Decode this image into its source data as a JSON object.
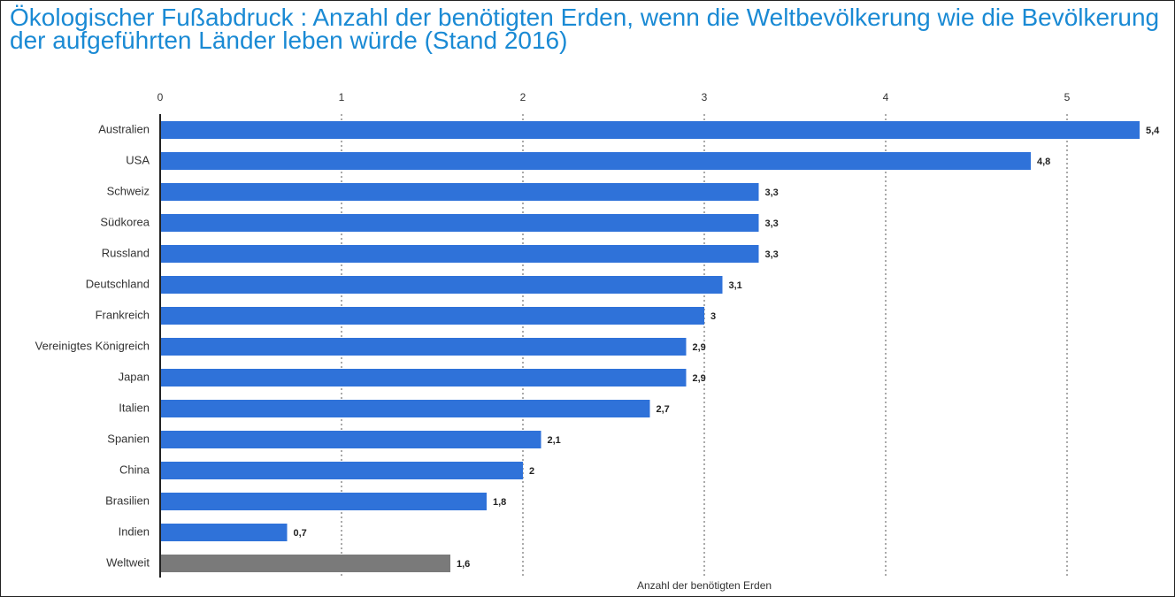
{
  "chart_data": {
    "type": "barh",
    "title": "Ökologischer Fußabdruck : Anzahl der benötigten Erden, wenn die Weltbevölkerung wie die Bevölkerung der aufgeführten Länder leben würde (Stand 2016)",
    "x_label": "Anzahl der benötigten Erden",
    "categories": [
      "Australien",
      "USA",
      "Schweiz",
      "Südkorea",
      "Russland",
      "Deutschland",
      "Frankreich",
      "Vereinigtes Königreich",
      "Japan",
      "Italien",
      "Spanien",
      "China",
      "Brasilien",
      "Indien",
      "Weltweit"
    ],
    "values": [
      5.4,
      4.8,
      3.3,
      3.3,
      3.3,
      3.1,
      3,
      2.9,
      2.9,
      2.7,
      2.1,
      2,
      1.8,
      0.7,
      1.6
    ],
    "value_labels": [
      "5,4",
      "4,8",
      "3,3",
      "3,3",
      "3,3",
      "3,1",
      "3",
      "2,9",
      "2,9",
      "2,7",
      "2,1",
      "2",
      "1,8",
      "0,7",
      "1,6"
    ],
    "colors": [
      "#2f72d9",
      "#2f72d9",
      "#2f72d9",
      "#2f72d9",
      "#2f72d9",
      "#2f72d9",
      "#2f72d9",
      "#2f72d9",
      "#2f72d9",
      "#2f72d9",
      "#2f72d9",
      "#2f72d9",
      "#2f72d9",
      "#2f72d9",
      "#7a7a7a"
    ],
    "xlim": [
      0,
      5.5
    ],
    "xticks": [
      0,
      1,
      2,
      3,
      4,
      5
    ],
    "grid": true
  }
}
